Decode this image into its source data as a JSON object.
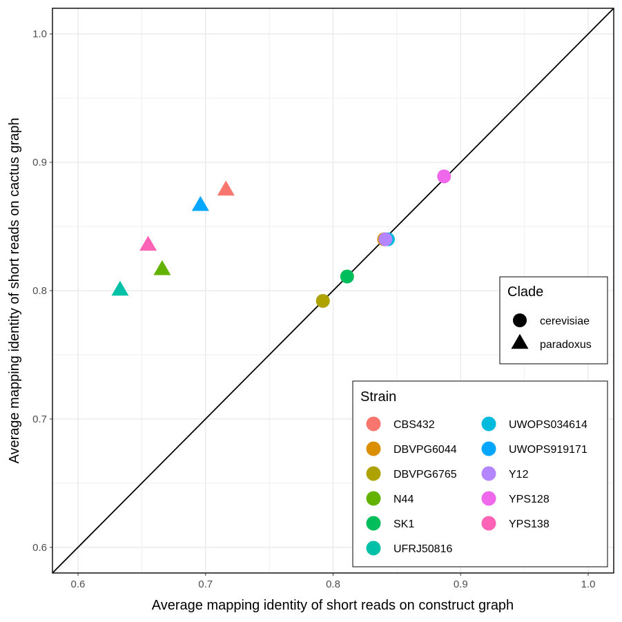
{
  "chart_data": {
    "type": "scatter",
    "title": "",
    "xlabel": "Average mapping identity of short reads on construct graph",
    "ylabel": "Average mapping identity of short reads on cactus graph",
    "xlim": [
      0.58,
      1.02
    ],
    "ylim": [
      0.58,
      1.02
    ],
    "xticks": [
      "0.6",
      "0.7",
      "0.8",
      "0.9",
      "1.0"
    ],
    "yticks": [
      "0.6",
      "0.7",
      "0.8",
      "0.9",
      "1.0"
    ],
    "grid": true,
    "reference_line": "y = x",
    "points": [
      {
        "strain": "CBS432",
        "clade": "paradoxus",
        "x": 0.716,
        "y": 0.878
      },
      {
        "strain": "UWOPS919171",
        "clade": "paradoxus",
        "x": 0.696,
        "y": 0.866
      },
      {
        "strain": "YPS138",
        "clade": "paradoxus",
        "x": 0.655,
        "y": 0.835
      },
      {
        "strain": "N44",
        "clade": "paradoxus",
        "x": 0.666,
        "y": 0.816
      },
      {
        "strain": "UFRJ50816",
        "clade": "paradoxus",
        "x": 0.633,
        "y": 0.8
      },
      {
        "strain": "YPS128",
        "clade": "cerevisiae",
        "x": 0.887,
        "y": 0.889
      },
      {
        "strain": "DBVPG6044",
        "clade": "cerevisiae",
        "x": 0.84,
        "y": 0.84
      },
      {
        "strain": "UWOPS034614",
        "clade": "cerevisiae",
        "x": 0.843,
        "y": 0.84
      },
      {
        "strain": "Y12",
        "clade": "cerevisiae",
        "x": 0.841,
        "y": 0.84
      },
      {
        "strain": "SK1",
        "clade": "cerevisiae",
        "x": 0.811,
        "y": 0.811
      },
      {
        "strain": "DBVPG6765",
        "clade": "cerevisiae",
        "x": 0.792,
        "y": 0.792
      }
    ],
    "legends": {
      "clade": {
        "title": "Clade",
        "placement": "right",
        "items": [
          {
            "label": "cerevisiae",
            "shape": "circle"
          },
          {
            "label": "paradoxus",
            "shape": "triangle"
          }
        ]
      },
      "strain": {
        "title": "Strain",
        "placement": "bottom-right",
        "items": [
          {
            "label": "CBS432",
            "color": "#F8766D"
          },
          {
            "label": "DBVPG6044",
            "color": "#DB8E00"
          },
          {
            "label": "DBVPG6765",
            "color": "#AEA200"
          },
          {
            "label": "N44",
            "color": "#64B200"
          },
          {
            "label": "SK1",
            "color": "#00BD5C"
          },
          {
            "label": "UFRJ50816",
            "color": "#00C1A7"
          },
          {
            "label": "UWOPS034614",
            "color": "#00BADE"
          },
          {
            "label": "UWOPS919171",
            "color": "#00A6FF"
          },
          {
            "label": "Y12",
            "color": "#B385FF"
          },
          {
            "label": "YPS128",
            "color": "#EF67EB"
          },
          {
            "label": "YPS138",
            "color": "#FF63B6"
          }
        ]
      }
    }
  }
}
